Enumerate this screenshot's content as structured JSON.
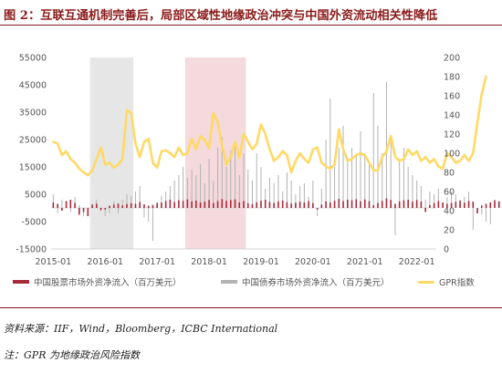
{
  "figure": {
    "title": "图 2：互联互通机制完善后，局部区域性地缘政治冲突与中国外资流动相关性降低",
    "source_note": "资料来源：IIF，Wind，Bloomberg，ICBC International",
    "footnote": "注：GPR 为地缘政治风险指数"
  },
  "colors": {
    "title": "#8b1a1a",
    "stock_bars": "#a52a3a",
    "bond_bars": "#b3b3b3",
    "gpr_line": "#ffd966",
    "shade_gray": "#e6e6e6",
    "shade_pink": "#f4d9dd"
  },
  "chart_data": {
    "type": "bar+line",
    "x_tick_labels": [
      "2015-01",
      "2016-01",
      "2017-01",
      "2018-01",
      "2019-01",
      "2020-01",
      "2021-01",
      "2022-01"
    ],
    "x_start": "2015-01",
    "x_end": "2022-05",
    "y_left": {
      "ticks": [
        -15000,
        -5000,
        5000,
        15000,
        25000,
        35000,
        45000,
        55000
      ],
      "range": [
        -15000,
        55000
      ]
    },
    "y_right": {
      "ticks": [
        0,
        20,
        40,
        60,
        80,
        100,
        120,
        140,
        160,
        180,
        200
      ],
      "range": [
        0,
        200
      ]
    },
    "shaded_periods": [
      {
        "from": "2015-10",
        "to": "2016-07",
        "color": "gray"
      },
      {
        "from": "2017-08",
        "to": "2018-09",
        "color": "pink"
      }
    ],
    "legend": [
      "中国股票市场外资净流入（百万美元）",
      "中国债券市场外资净流入（百万美元）",
      "GPR指数"
    ],
    "series": [
      {
        "name": "中国股票市场外资净流入（百万美元）",
        "axis": "left",
        "type": "bar",
        "values": [
          2000,
          1500,
          -1000,
          2500,
          3000,
          1800,
          -2500,
          -1500,
          -3000,
          1200,
          1500,
          -800,
          -600,
          800,
          1200,
          1600,
          900,
          1400,
          1700,
          1500,
          2200,
          1300,
          800,
          1100,
          1800,
          2000,
          2500,
          3000,
          2200,
          2800,
          2600,
          3100,
          2400,
          2700,
          2000,
          2300,
          2900,
          1800,
          2500,
          3200,
          2600,
          2900,
          3100,
          2000,
          2500,
          1700,
          1400,
          2100,
          2600,
          3000,
          2200,
          1800,
          2400,
          2700,
          2100,
          1600,
          1900,
          2300,
          2000,
          2500,
          1800,
          -600,
          1200,
          2400,
          2000,
          2600,
          3300,
          2500,
          3000,
          2800,
          3200,
          2400,
          3100,
          2500,
          1000,
          1800,
          2600,
          3500,
          2900,
          1500,
          2400,
          2800,
          3000,
          2300,
          2900,
          2300,
          -1500,
          1000,
          1800,
          2500,
          2000,
          1500,
          1800,
          2200,
          2600,
          1900,
          2500,
          2300,
          -2000,
          900,
          1500,
          2000,
          2800,
          2400,
          1900
        ]
      },
      {
        "name": "中国债券市场外资净流入（百万美元）",
        "axis": "left",
        "type": "bar",
        "values": [
          5000,
          -2000,
          3000,
          2000,
          -1500,
          4000,
          1000,
          -3000,
          -2000,
          1500,
          3000,
          -1000,
          -3000,
          -2000,
          2500,
          -2000,
          3000,
          5000,
          4500,
          6000,
          8000,
          -3500,
          -5000,
          -12000,
          2000,
          4500,
          6000,
          8000,
          10000,
          12000,
          15000,
          11000,
          14000,
          12000,
          16000,
          9000,
          18000,
          10000,
          22000,
          26000,
          15000,
          21000,
          24000,
          12000,
          20000,
          14000,
          10000,
          20000,
          15000,
          7000,
          11000,
          9000,
          12000,
          6000,
          13000,
          10000,
          5000,
          8000,
          9000,
          4000,
          10000,
          -3000,
          7000,
          25000,
          40000,
          15000,
          22000,
          30000,
          18000,
          22000,
          19000,
          28000,
          20000,
          17000,
          42000,
          30000,
          20000,
          46000,
          24000,
          -10000,
          18000,
          22000,
          15000,
          12000,
          10000,
          8000,
          3000,
          6000,
          5000,
          7000,
          2000,
          4000,
          6000,
          5000,
          3000,
          4000,
          6000,
          -8000,
          -2000,
          -2500,
          -5000,
          -6000,
          3000,
          2000,
          -1000
        ]
      },
      {
        "name": "GPR指数",
        "axis": "right",
        "type": "line",
        "values": [
          112,
          110,
          98,
          102,
          94,
          90,
          84,
          80,
          77,
          82,
          94,
          106,
          88,
          90,
          85,
          88,
          94,
          145,
          142,
          110,
          96,
          112,
          115,
          90,
          85,
          102,
          103,
          100,
          96,
          106,
          98,
          100,
          115,
          104,
          118,
          114,
          105,
          142,
          132,
          108,
          88,
          96,
          112,
          95,
          120,
          112,
          104,
          110,
          130,
          120,
          104,
          92,
          96,
          102,
          98,
          80,
          92,
          100,
          94,
          90,
          104,
          106,
          90,
          86,
          84,
          88,
          125,
          104,
          92,
          94,
          98,
          100,
          98,
          90,
          82,
          82,
          96,
          102,
          118,
          96,
          92,
          94,
          104,
          98,
          102,
          92,
          96,
          90,
          94,
          86,
          84,
          100,
          96,
          90,
          92,
          98,
          92,
          100,
          132,
          162,
          180
        ]
      }
    ]
  }
}
